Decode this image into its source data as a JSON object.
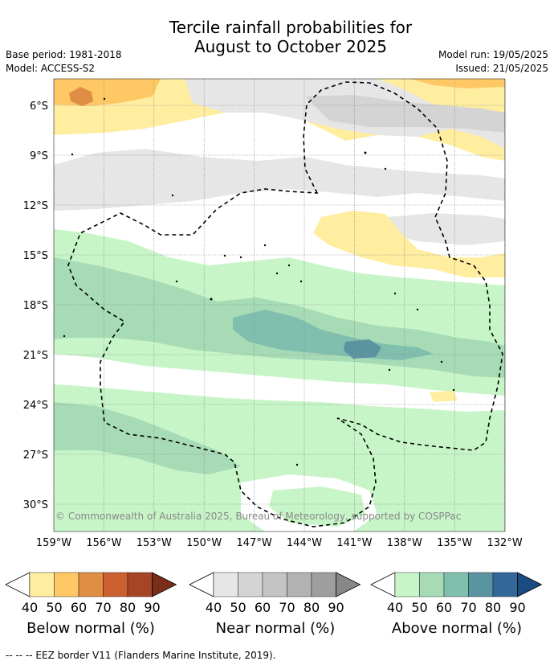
{
  "title_line1": "Tercile rainfall probabilities for",
  "title_line2": "August to October 2025",
  "base_period": "Base period: 1981-2018",
  "model": "Model: ACCESS-S2",
  "model_run": "Model run: 19/05/2025",
  "issued": "Issued: 21/05/2025",
  "copyright": "© Commonwealth of Australia 2025, Bureau of Meteorology, supported by COSPPac",
  "lat_ticks": [
    "6°S",
    "9°S",
    "12°S",
    "15°S",
    "18°S",
    "21°S",
    "24°S",
    "27°S",
    "30°S"
  ],
  "lon_ticks": [
    "159°W",
    "156°W",
    "153°W",
    "150°W",
    "147°W",
    "144°W",
    "141°W",
    "138°W",
    "135°W",
    "132°W"
  ],
  "colorbars": [
    {
      "title": "Below normal (%)",
      "ticks": [
        "40",
        "50",
        "60",
        "70",
        "80",
        "90"
      ],
      "colors": [
        "#ffeda0",
        "#fec965",
        "#e08e45",
        "#cc6030",
        "#a64525",
        "#7a2d18"
      ]
    },
    {
      "title": "Near normal (%)",
      "ticks": [
        "40",
        "50",
        "60",
        "70",
        "80",
        "90"
      ],
      "colors": [
        "#e6e6e6",
        "#d4d4d4",
        "#c4c4c4",
        "#b2b2b2",
        "#9e9e9e",
        "#888888"
      ]
    },
    {
      "title": "Above normal (%)",
      "ticks": [
        "40",
        "50",
        "60",
        "70",
        "80",
        "90"
      ],
      "colors": [
        "#c7f5c8",
        "#a6dbb6",
        "#80bfae",
        "#5a94a0",
        "#336699",
        "#1a4c80"
      ]
    }
  ],
  "footnote": "-- -- -- EEZ border V11 (Flanders Marine Institute, 2019)."
}
